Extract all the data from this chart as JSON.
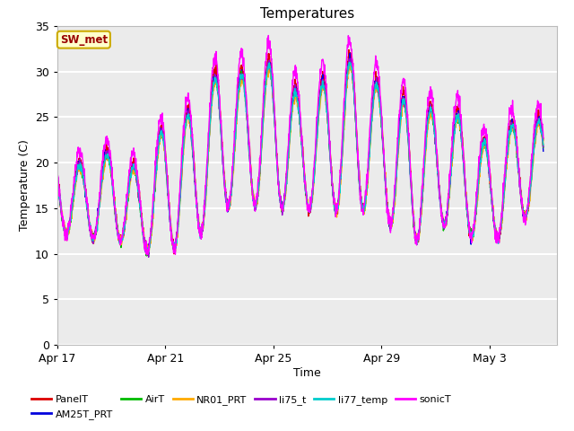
{
  "title": "Temperatures",
  "xlabel": "Time",
  "ylabel": "Temperature (C)",
  "ylim": [
    0,
    35
  ],
  "yticks": [
    0,
    5,
    10,
    15,
    20,
    25,
    30,
    35
  ],
  "xlim": [
    0,
    18.5
  ],
  "xtick_labels": [
    "Apr 17",
    "Apr 21",
    "Apr 25",
    "Apr 29",
    "May 3"
  ],
  "xtick_positions": [
    0,
    4,
    8,
    12,
    16
  ],
  "annotation_text": "SW_met",
  "annotation_bg": "#ffffcc",
  "annotation_border": "#ccaa00",
  "annotation_fg": "#990000",
  "series_order": [
    "PanelT",
    "AM25T_PRT",
    "AirT",
    "NR01_PRT",
    "li75_t",
    "li77_temp",
    "sonicT"
  ],
  "series": {
    "PanelT": {
      "color": "#dd0000",
      "lw": 1.0
    },
    "AM25T_PRT": {
      "color": "#0000dd",
      "lw": 1.0
    },
    "AirT": {
      "color": "#00bb00",
      "lw": 1.0
    },
    "NR01_PRT": {
      "color": "#ffaa00",
      "lw": 1.0
    },
    "li75_t": {
      "color": "#9900cc",
      "lw": 1.0
    },
    "li77_temp": {
      "color": "#00cccc",
      "lw": 1.0
    },
    "sonicT": {
      "color": "#ff00ff",
      "lw": 1.0
    }
  },
  "plot_bg": "#ebebeb",
  "fig_bg": "#ffffff",
  "grid_color": "#ffffff",
  "grid_lw": 1.5,
  "legend_ncol": 6,
  "legend_fontsize": 8,
  "day_peaks": [
    20.5,
    20.0,
    21.5,
    19.5,
    24.5,
    26.0,
    30.5,
    30.0,
    31.5,
    27.5,
    29.5,
    32.0,
    28.5,
    27.0,
    26.0,
    25.5,
    22.0,
    25.0
  ],
  "day_mins": [
    12.5,
    11.5,
    12.0,
    10.0,
    10.5,
    11.0,
    15.0,
    15.5,
    15.0,
    15.0,
    14.5,
    15.0,
    14.5,
    10.5,
    13.5,
    12.5,
    10.5,
    14.0
  ]
}
